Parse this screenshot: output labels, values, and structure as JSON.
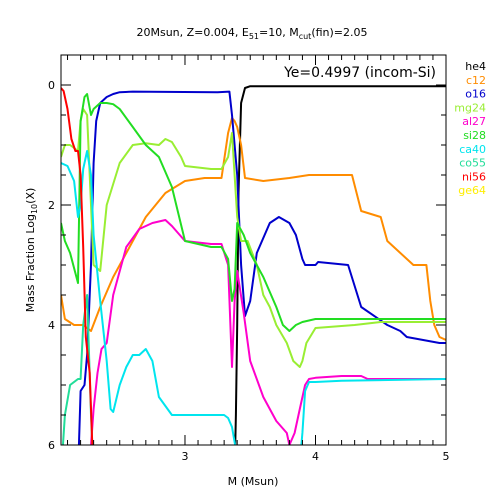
{
  "chart_data": {
    "type": "line",
    "title": {
      "main": "20Msun, Z=0.004, E",
      "sub1": "51",
      "mid": "=10, M",
      "sub2": "cut",
      "end": "(fin)=2.05"
    },
    "annotation": "Ye=0.4997 (incom-Si)",
    "xlabel": "M (Msun)",
    "ylabel": {
      "main": "Mass Fraction Log",
      "sub": "10",
      "end": "(X)"
    },
    "xlim": [
      2.05,
      5.0
    ],
    "ylim": [
      -6,
      0.5
    ],
    "xticks": [
      {
        "v": 3,
        "label": "3"
      },
      {
        "v": 4,
        "label": "4"
      },
      {
        "v": 5,
        "label": "5"
      }
    ],
    "yticks": [
      {
        "v": 0,
        "label": "0"
      },
      {
        "v": -2,
        "label": "2"
      },
      {
        "v": -4,
        "label": "4"
      },
      {
        "v": -6,
        "label": "6"
      }
    ],
    "legend_position": "right, outside plot",
    "series": [
      {
        "name": "he4",
        "color": "#000000",
        "x": [
          2.05,
          3.38,
          3.39,
          3.4,
          3.41,
          3.43,
          3.46,
          3.5,
          5.0
        ],
        "y": [
          -6.5,
          -6.5,
          -5.5,
          -4.0,
          -1.8,
          -0.3,
          -0.05,
          -0.02,
          -0.02
        ]
      },
      {
        "name": "c12",
        "color": "#ff8c00",
        "x": [
          2.05,
          2.08,
          2.15,
          2.22,
          2.28,
          2.35,
          2.45,
          2.55,
          2.7,
          2.85,
          3.0,
          3.15,
          3.28,
          3.33,
          3.36,
          3.38,
          3.4,
          3.43,
          3.46,
          3.6,
          3.8,
          3.95,
          4.05,
          4.28,
          4.35,
          4.5,
          4.55,
          4.75,
          4.85,
          4.88,
          4.91,
          4.95,
          5.0
        ],
        "y": [
          -3.5,
          -3.9,
          -4.0,
          -4.0,
          -4.1,
          -3.7,
          -3.2,
          -2.8,
          -2.2,
          -1.8,
          -1.6,
          -1.55,
          -1.55,
          -0.8,
          -0.55,
          -0.6,
          -0.7,
          -1.0,
          -1.55,
          -1.6,
          -1.55,
          -1.5,
          -1.5,
          -1.5,
          -2.1,
          -2.2,
          -2.6,
          -3.0,
          -3.0,
          -3.6,
          -4.0,
          -4.2,
          -4.25
        ]
      },
      {
        "name": "o16",
        "color": "#0000cc",
        "x": [
          2.05,
          2.18,
          2.2,
          2.23,
          2.25,
          2.28,
          2.3,
          2.32,
          2.35,
          2.4,
          2.45,
          2.5,
          2.6,
          3.25,
          3.34,
          3.36,
          3.4,
          3.43,
          3.46,
          3.5,
          3.55,
          3.65,
          3.72,
          3.8,
          3.85,
          3.9,
          3.92,
          4.0,
          4.02,
          4.25,
          4.35,
          4.55,
          4.65,
          4.7,
          4.95,
          5.0
        ],
        "y": [
          -6.5,
          -6.5,
          -5.1,
          -5.0,
          -4.5,
          -3.0,
          -1.3,
          -0.6,
          -0.3,
          -0.2,
          -0.15,
          -0.12,
          -0.11,
          -0.12,
          -0.11,
          -0.5,
          -1.5,
          -3.0,
          -3.85,
          -3.6,
          -2.8,
          -2.3,
          -2.2,
          -2.3,
          -2.5,
          -2.9,
          -3.0,
          -3.0,
          -2.95,
          -3.0,
          -3.7,
          -4.0,
          -4.1,
          -4.2,
          -4.3,
          -4.3
        ]
      },
      {
        "name": "mg24",
        "color": "#99ee33",
        "x": [
          2.05,
          2.08,
          2.12,
          2.18,
          2.2,
          2.22,
          2.25,
          2.28,
          2.3,
          2.35,
          2.4,
          2.5,
          2.6,
          2.7,
          2.8,
          2.85,
          2.9,
          2.97,
          3.0,
          3.2,
          3.28,
          3.33,
          3.36,
          3.4,
          3.43,
          3.48,
          3.55,
          3.6,
          3.65,
          3.7,
          3.78,
          3.83,
          3.88,
          3.9,
          3.93,
          4.0,
          4.3,
          4.5,
          4.7,
          5.0
        ],
        "y": [
          -1.2,
          -1.0,
          -1.0,
          -1.1,
          -0.6,
          -0.4,
          -0.5,
          -2.0,
          -3.0,
          -3.1,
          -2.0,
          -1.3,
          -1.0,
          -0.97,
          -1.0,
          -0.9,
          -0.95,
          -1.2,
          -1.35,
          -1.4,
          -1.4,
          -1.2,
          -0.8,
          -2.2,
          -2.6,
          -2.6,
          -3.0,
          -3.5,
          -3.7,
          -4.0,
          -4.3,
          -4.6,
          -4.7,
          -4.6,
          -4.3,
          -4.05,
          -4.0,
          -3.95,
          -3.95,
          -3.95
        ]
      },
      {
        "name": "al27",
        "color": "#ff00cc",
        "x": [
          2.05,
          2.2,
          2.25,
          2.28,
          2.3,
          2.33,
          2.36,
          2.4,
          2.45,
          2.55,
          2.65,
          2.75,
          2.85,
          2.9,
          3.0,
          3.2,
          3.28,
          3.33,
          3.36,
          3.38,
          3.4,
          3.45,
          3.5,
          3.6,
          3.7,
          3.78,
          3.8,
          3.84,
          3.88,
          3.92,
          3.95,
          4.0,
          4.2,
          4.35,
          4.4,
          4.6,
          5.0
        ],
        "y": [
          -6.5,
          -6.5,
          -6.5,
          -6.0,
          -5.4,
          -4.8,
          -4.4,
          -4.3,
          -3.5,
          -2.7,
          -2.4,
          -2.3,
          -2.25,
          -2.35,
          -2.6,
          -2.65,
          -2.65,
          -3.0,
          -4.7,
          -3.6,
          -3.1,
          -3.8,
          -4.6,
          -5.2,
          -5.6,
          -5.8,
          -6.0,
          -5.8,
          -5.4,
          -5.0,
          -4.9,
          -4.88,
          -4.85,
          -4.85,
          -4.9,
          -4.9,
          -4.9
        ]
      },
      {
        "name": "si28",
        "color": "#22dd22",
        "x": [
          2.05,
          2.08,
          2.12,
          2.18,
          2.2,
          2.23,
          2.25,
          2.28,
          2.3,
          2.35,
          2.4,
          2.45,
          2.5,
          2.6,
          2.7,
          2.8,
          2.9,
          3.0,
          3.2,
          3.28,
          3.33,
          3.36,
          3.38,
          3.4,
          3.45,
          3.5,
          3.6,
          3.7,
          3.75,
          3.8,
          3.85,
          3.9,
          4.0,
          5.0
        ],
        "y": [
          -2.3,
          -2.6,
          -2.8,
          -3.3,
          -0.6,
          -0.2,
          -0.15,
          -0.5,
          -0.4,
          -0.3,
          -0.3,
          -0.32,
          -0.4,
          -0.7,
          -1.0,
          -1.2,
          -1.7,
          -2.6,
          -2.7,
          -2.7,
          -2.9,
          -3.6,
          -3.4,
          -2.3,
          -2.5,
          -2.8,
          -3.2,
          -3.7,
          -4.0,
          -4.1,
          -4.0,
          -3.95,
          -3.9,
          -3.9
        ]
      },
      {
        "name": "ca40",
        "color": "#00e5ee",
        "x": [
          2.05,
          2.1,
          2.15,
          2.18,
          2.2,
          2.22,
          2.25,
          2.28,
          2.3,
          2.35,
          2.4,
          2.43,
          2.45,
          2.5,
          2.55,
          2.6,
          2.65,
          2.7,
          2.75,
          2.8,
          2.9,
          3.0,
          3.3,
          3.33,
          3.36,
          3.4,
          3.5,
          3.7,
          3.8,
          3.85,
          3.88,
          3.9,
          3.92,
          3.95,
          4.0,
          4.2,
          5.0
        ],
        "y": [
          -1.3,
          -1.35,
          -1.6,
          -2.2,
          -2.0,
          -1.4,
          -1.1,
          -1.5,
          -2.5,
          -3.6,
          -4.6,
          -5.4,
          -5.45,
          -5.0,
          -4.7,
          -4.5,
          -4.5,
          -4.4,
          -4.6,
          -5.2,
          -5.5,
          -5.5,
          -5.5,
          -5.55,
          -5.7,
          -6.2,
          -6.5,
          -6.5,
          -6.5,
          -6.5,
          -6.3,
          -5.8,
          -5.1,
          -4.95,
          -4.95,
          -4.93,
          -4.9
        ]
      },
      {
        "name": "co55",
        "color": "#22dd99",
        "x": [
          2.05,
          2.08,
          2.12,
          2.18,
          2.2,
          2.22,
          2.25,
          2.28,
          2.3
        ],
        "y": [
          -6.5,
          -5.5,
          -5.0,
          -4.9,
          -4.9,
          -4.0,
          -3.5,
          -5.5,
          -6.5
        ]
      },
      {
        "name": "ni56",
        "color": "#ff0000",
        "x": [
          2.05,
          2.07,
          2.1,
          2.13,
          2.16,
          2.18,
          2.2,
          2.22,
          2.24,
          2.27,
          2.29,
          2.32
        ],
        "y": [
          -0.05,
          -0.1,
          -0.4,
          -0.9,
          -1.1,
          -1.1,
          -1.5,
          -2.7,
          -4.2,
          -4.8,
          -6.0,
          -6.5
        ]
      },
      {
        "name": "ge64",
        "color": "#ffee00",
        "x": [],
        "y": []
      }
    ]
  }
}
